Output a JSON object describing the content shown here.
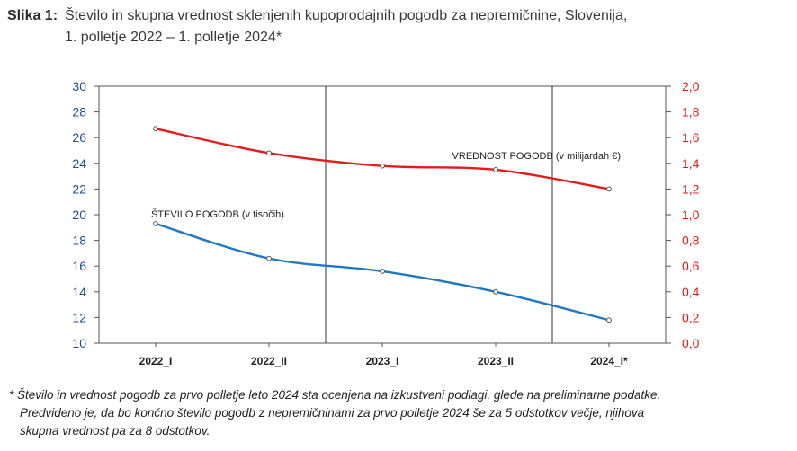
{
  "figure": {
    "label": "Slika 1:",
    "title_line1": "Število in skupna vrednost sklenjenih kupoprodajnih pogodb za nepremičnine, Slovenija,",
    "title_line2": "1. polletje 2022 – 1. polletje 2024*"
  },
  "chart_data": {
    "type": "line",
    "categories": [
      "2022_I",
      "2022_II",
      "2023_I",
      "2023_II",
      "2024_I*"
    ],
    "series": [
      {
        "name": "VREDNOST POGODB (v milijardah €)",
        "axis": "right",
        "color": "#e31b1b",
        "values": [
          1.67,
          1.48,
          1.38,
          1.35,
          1.2
        ]
      },
      {
        "name": "ŠTEVILO POGODB (v tisočih)",
        "axis": "left",
        "color": "#1f78c1",
        "values": [
          19.3,
          16.6,
          15.6,
          14.0,
          11.8
        ]
      }
    ],
    "left_axis": {
      "min": 10,
      "max": 30,
      "step": 2,
      "ticks": [
        "10",
        "12",
        "14",
        "16",
        "18",
        "20",
        "22",
        "24",
        "26",
        "28",
        "30"
      ],
      "color": "#1f4e8c"
    },
    "right_axis": {
      "min": 0.0,
      "max": 2.0,
      "step": 0.2,
      "ticks": [
        "0,0",
        "0,2",
        "0,4",
        "0,6",
        "0,8",
        "1,0",
        "1,2",
        "1,4",
        "1,6",
        "1,8",
        "2,0"
      ],
      "color": "#e31b1b"
    },
    "vertical_separators_after": [
      "2022_II",
      "2023_II"
    ]
  },
  "footnote": {
    "line1": "* Število  in vrednost pogodb za prvo polletje leto 2024 sta ocenjena na izkustveni podlagi, glede na preliminarne podatke.",
    "line2": "Predvideno je, da bo končno število pogodb z nepremičninami za prvo polletje 2024 še za 5 odstotkov večje, njihova",
    "line3": "skupna vrednost pa za 8 odstotkov."
  }
}
